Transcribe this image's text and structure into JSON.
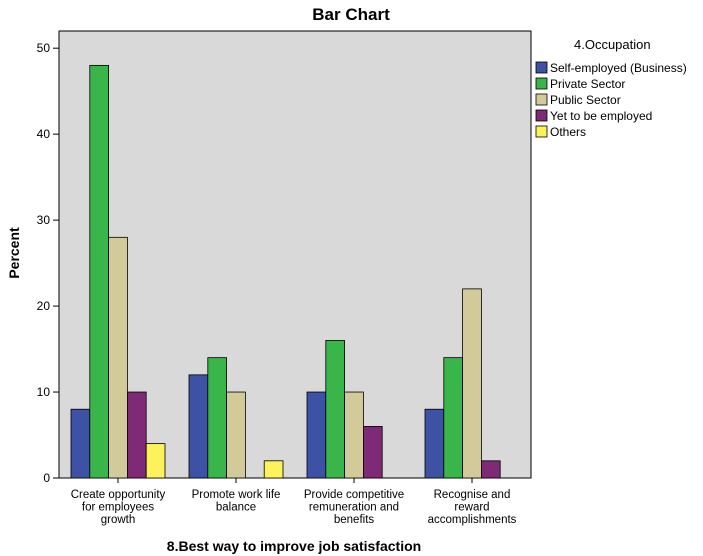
{
  "chart_data": {
    "type": "bar",
    "title": "Bar Chart",
    "xlabel": "8.Best way to improve job satisfaction",
    "ylabel": "Percent",
    "ylim": [
      0,
      52
    ],
    "yticks": [
      0,
      10,
      20,
      30,
      40,
      50
    ],
    "grid": false,
    "legend_position": "right",
    "legend_title": "4.Occupation",
    "categories": [
      [
        "Create opportunity",
        "for employees",
        "growth"
      ],
      [
        "Promote work life",
        "balance"
      ],
      [
        "Provide competitive",
        "remuneration and",
        "benefits"
      ],
      [
        "Recognise and",
        "reward",
        "accomplishments"
      ]
    ],
    "series": [
      {
        "name": "Self-employed (Business)",
        "color": "#3d51a5",
        "values": [
          8,
          12,
          10,
          8
        ]
      },
      {
        "name": "Private Sector",
        "color": "#3ab54a",
        "values": [
          48,
          14,
          16,
          14
        ]
      },
      {
        "name": "Public Sector",
        "color": "#d2cb99",
        "values": [
          28,
          10,
          10,
          22
        ]
      },
      {
        "name": "Yet to be employed",
        "color": "#7e2a76",
        "values": [
          10,
          0,
          6,
          2
        ]
      },
      {
        "name": "Others",
        "color": "#fcf25c",
        "values": [
          4,
          2,
          0,
          0
        ]
      }
    ],
    "plot_background": "#d9d9d9"
  }
}
